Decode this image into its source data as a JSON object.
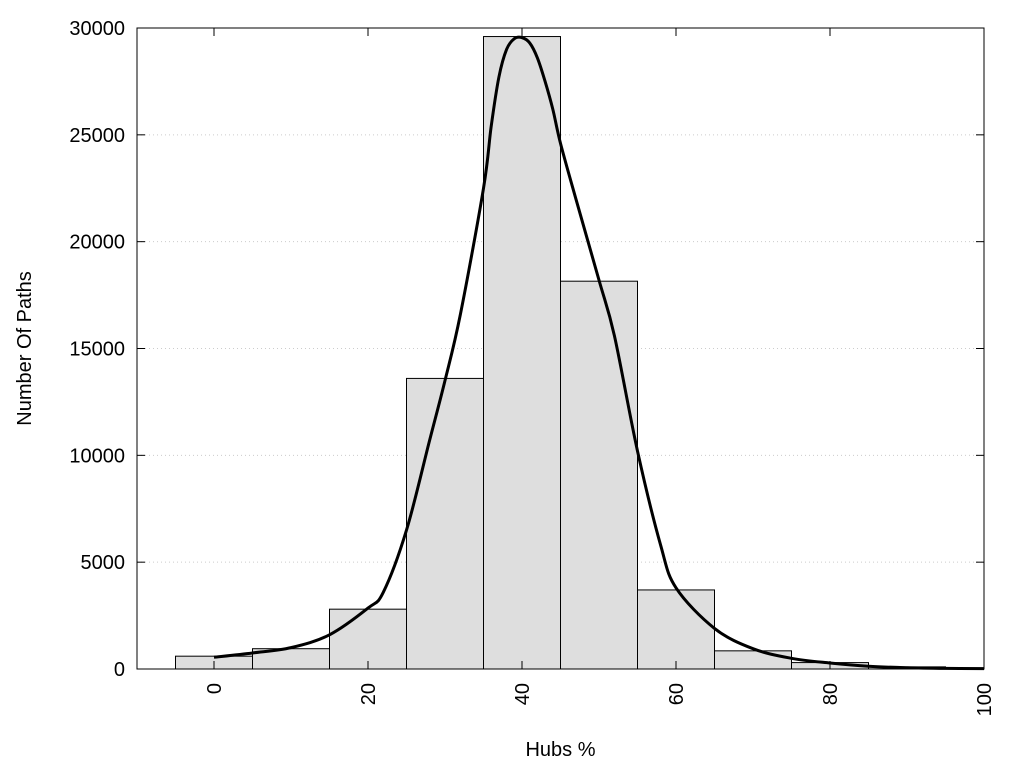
{
  "chart_data": {
    "type": "bar",
    "title": "",
    "xlabel": "Hubs %",
    "ylabel": "Number Of Paths",
    "xlim": [
      -10,
      100
    ],
    "ylim": [
      0,
      30000
    ],
    "x_ticks": [
      0,
      20,
      40,
      60,
      80,
      100
    ],
    "y_ticks": [
      0,
      5000,
      10000,
      15000,
      20000,
      25000,
      30000
    ],
    "grid": "horizontal dotted",
    "bar_width": 10,
    "categories": [
      0,
      10,
      20,
      30,
      40,
      50,
      60,
      70,
      80,
      90,
      100
    ],
    "values": [
      600,
      950,
      2800,
      13600,
      29600,
      18150,
      3700,
      850,
      300,
      100,
      50
    ],
    "series": [
      {
        "type": "line",
        "x": [
          0,
          5,
          10,
          15,
          20,
          22,
          25,
          28,
          30,
          32,
          35,
          36,
          37,
          38,
          39,
          40,
          41,
          42,
          43,
          44,
          45,
          47,
          50,
          52,
          55,
          58,
          60,
          65,
          70,
          75,
          80,
          85,
          90,
          95,
          100
        ],
        "y": [
          550,
          750,
          1000,
          1600,
          2850,
          3600,
          6500,
          10700,
          13500,
          16600,
          22500,
          25400,
          27700,
          29000,
          29500,
          29550,
          29300,
          28600,
          27500,
          26200,
          24600,
          22000,
          18200,
          15600,
          10200,
          5800,
          3800,
          1900,
          950,
          500,
          280,
          130,
          60,
          30,
          20
        ]
      }
    ],
    "colors": {
      "bar_fill": "#dedede",
      "bar_stroke": "#000000",
      "line": "#000000",
      "grid": "#cccccc"
    }
  }
}
